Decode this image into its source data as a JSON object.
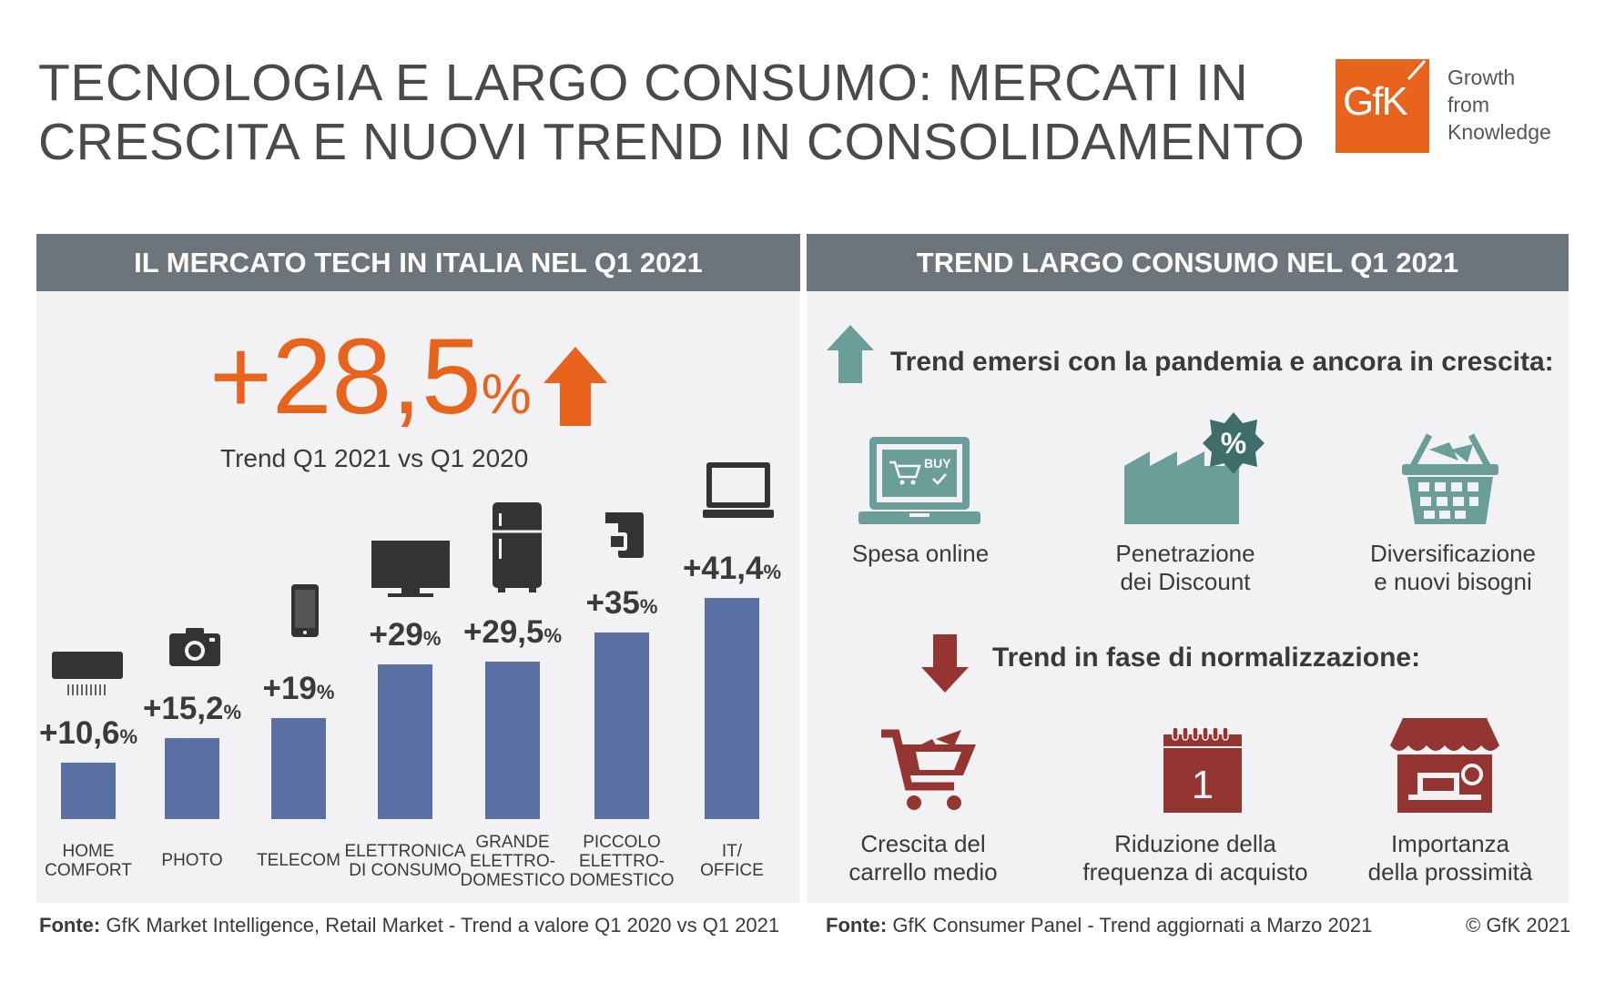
{
  "title": {
    "line1": "TECNOLOGIA E LARGO CONSUMO: MERCATI IN",
    "line2": "CRESCITA E NUOVI TREND IN CONSOLIDAMENTO"
  },
  "logo": {
    "mark": "GfK",
    "tagline": [
      "Growth",
      "from",
      "Knowledge"
    ],
    "color": "#e8631c"
  },
  "left_panel": {
    "header": "IL MERCATO TECH IN ITALIA NEL Q1 2021",
    "headline_value": "+28,5",
    "headline_unit": "%",
    "headline_sub": "Trend Q1 2021 vs Q1 2020",
    "accent_color": "#e8631c",
    "bar_color": "#5a70a3"
  },
  "chart_data": {
    "type": "bar",
    "title": "IL MERCATO TECH IN ITALIA NEL Q1 2021",
    "categories": [
      [
        "HOME",
        "COMFORT"
      ],
      [
        "PHOTO"
      ],
      [
        "TELECOM"
      ],
      [
        "ELETTRONICA",
        "DI CONSUMO"
      ],
      [
        "GRANDE",
        "ELETTRO-",
        "DOMESTICO"
      ],
      [
        "PICCOLO",
        "ELETTRO-",
        "DOMESTICO"
      ],
      [
        "IT/",
        "OFFICE"
      ]
    ],
    "values": [
      10.6,
      15.2,
      19,
      29,
      29.5,
      35,
      41.4
    ],
    "labels": [
      "+10,6",
      "+15,2",
      "+19",
      "+29",
      "+29,5",
      "+35",
      "+41,4"
    ],
    "unit": "%",
    "icons": [
      "air-conditioner-icon",
      "camera-icon",
      "smartphone-icon",
      "tv-icon",
      "fridge-icon",
      "coffee-machine-icon",
      "laptop-icon"
    ],
    "ylim": [
      0,
      45
    ]
  },
  "right_panel": {
    "header": "TREND LARGO CONSUMO NEL Q1 2021",
    "up_title": "Trend emersi con la pandemia e ancora in crescita:",
    "up_items": [
      [
        "Spesa online"
      ],
      [
        "Penetrazione",
        "dei Discount"
      ],
      [
        "Diversificazione",
        "e nuovi bisogni"
      ]
    ],
    "down_title": "Trend in fase di normalizzazione:",
    "down_items": [
      [
        "Crescita del",
        "carrello medio"
      ],
      [
        "Riduzione della",
        "frequenza di acquisto"
      ],
      [
        "Importanza",
        "della prossimità"
      ]
    ],
    "laptop_badge": "BUY",
    "discount_badge": "%",
    "calendar_number": "1",
    "up_color": "#6b9e98",
    "down_color": "#943532"
  },
  "footer": {
    "left_label": "Fonte:",
    "left_text": "GfK Market Intelligence, Retail Market - Trend a valore Q1 2020 vs Q1 2021",
    "right_label": "Fonte:",
    "right_text": "GfK Consumer Panel - Trend aggiornati a Marzo 2021",
    "copyright": "© GfK 2021"
  }
}
